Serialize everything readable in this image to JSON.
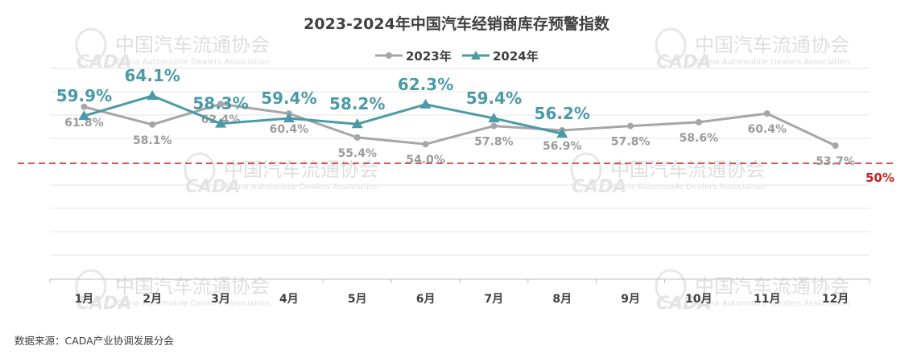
{
  "chart_data": {
    "type": "line",
    "title": "2023-2024年中国汽车经销商库存预警指数",
    "categories": [
      "1月",
      "2月",
      "3月",
      "4月",
      "5月",
      "6月",
      "7月",
      "8月",
      "9月",
      "10月",
      "11月",
      "12月"
    ],
    "series": [
      {
        "name": "2023年",
        "color": "#a6a6a6",
        "marker": "circle",
        "values": [
          61.8,
          58.1,
          62.4,
          60.4,
          55.4,
          54.0,
          57.8,
          56.9,
          57.8,
          58.6,
          60.4,
          53.7
        ],
        "labels": [
          "61.8%",
          "58.1%",
          "62.4%",
          "60.4%",
          "55.4%",
          "54.0%",
          "57.8%",
          "56.9%",
          "57.8%",
          "58.6%",
          "60.4%",
          "53.7%"
        ]
      },
      {
        "name": "2024年",
        "color": "#4a9aa8",
        "marker": "triangle",
        "values": [
          59.9,
          64.1,
          58.3,
          59.4,
          58.2,
          62.3,
          59.4,
          56.2,
          null,
          null,
          null,
          null
        ],
        "labels": [
          "59.9%",
          "64.1%",
          "58.3%",
          "59.4%",
          "58.2%",
          "62.3%",
          "59.4%",
          "56.2%",
          "",
          "",
          "",
          ""
        ]
      }
    ],
    "reference_line": {
      "value": 50,
      "label": "50%",
      "color": "#cc1f1f",
      "style": "dashed"
    },
    "legend_position": "top-center",
    "grid": true,
    "source": "数据来源：CADA产业协调发展分会"
  },
  "watermark": {
    "org_cn": "中国汽车流通协会",
    "org_en": "China Automobile Dealers Association",
    "logo": "CADA"
  }
}
